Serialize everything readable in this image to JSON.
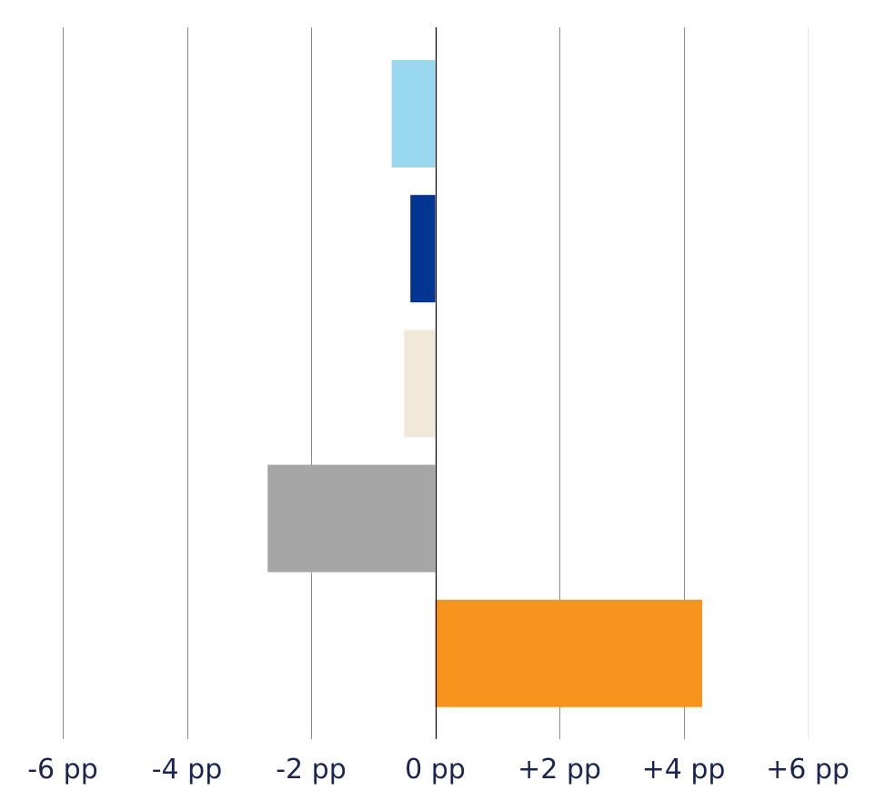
{
  "chart_data": {
    "type": "bar",
    "orientation": "horizontal",
    "title": "",
    "xlabel": "",
    "ylabel": "",
    "xlim": [
      -6,
      6
    ],
    "grid": true,
    "legend": "none",
    "tick_values": [
      -6,
      -4,
      -2,
      0,
      2,
      4,
      6
    ],
    "tick_labels": [
      "-6 pp",
      "-4 pp",
      "-2 pp",
      "0 pp",
      "+2 pp",
      "+4 pp",
      "+6 pp"
    ],
    "bars": [
      {
        "value": -0.7,
        "color": "#99d9f0"
      },
      {
        "value": -0.4,
        "color": "#003591"
      },
      {
        "value": -0.5,
        "color": "#f2e8d9"
      },
      {
        "value": -2.7,
        "color": "#a6a6a6"
      },
      {
        "value": 4.3,
        "color": "#f7941e"
      }
    ]
  }
}
